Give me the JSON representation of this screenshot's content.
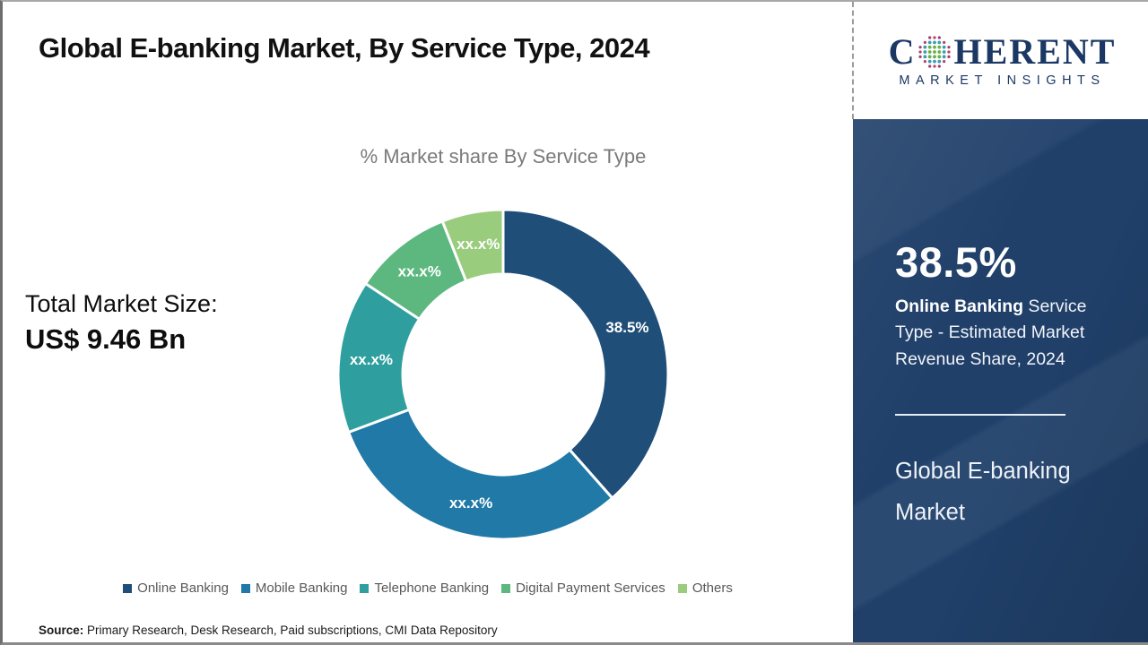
{
  "title": "Global E-banking Market, By Service Type, 2024",
  "logo": {
    "name_first_letter": "C",
    "name_rest": "HERENT",
    "subtitle": "MARKET INSIGHTS"
  },
  "left_stat": {
    "label": "Total Market Size:",
    "value": "US$ 9.46 Bn"
  },
  "chart_data": {
    "type": "pie",
    "variant": "donut",
    "title": "% Market share By Service Type",
    "unit": "%",
    "segments": [
      {
        "label": "Online Banking",
        "display_value": "38.5%",
        "value": 38.5,
        "color": "#1f4e79"
      },
      {
        "label": "Mobile Banking",
        "display_value": "xx.x%",
        "value": 30.8,
        "color": "#2079a7"
      },
      {
        "label": "Telephone Banking",
        "display_value": "xx.x%",
        "value": 15.0,
        "color": "#2f9e9e"
      },
      {
        "label": "Digital Payment Services",
        "display_value": "xx.x%",
        "value": 9.7,
        "color": "#5cb87e"
      },
      {
        "label": "Others",
        "display_value": "xx.x%",
        "value": 6.0,
        "color": "#9acc7e"
      }
    ],
    "legend_position": "bottom",
    "label_color": "#ffffff",
    "start_angle_deg": 0,
    "direction": "clockwise"
  },
  "sidebar": {
    "stat_value": "38.5%",
    "stat_desc_bold": "Online Banking",
    "stat_desc_rest": " Service Type - Estimated Market Revenue Share, 2024",
    "market_name": "Global E-banking Market",
    "panel_color": "#20406a"
  },
  "source": {
    "label": "Source:",
    "text": " Primary Research, Desk Research, Paid subscriptions, CMI Data Repository"
  }
}
